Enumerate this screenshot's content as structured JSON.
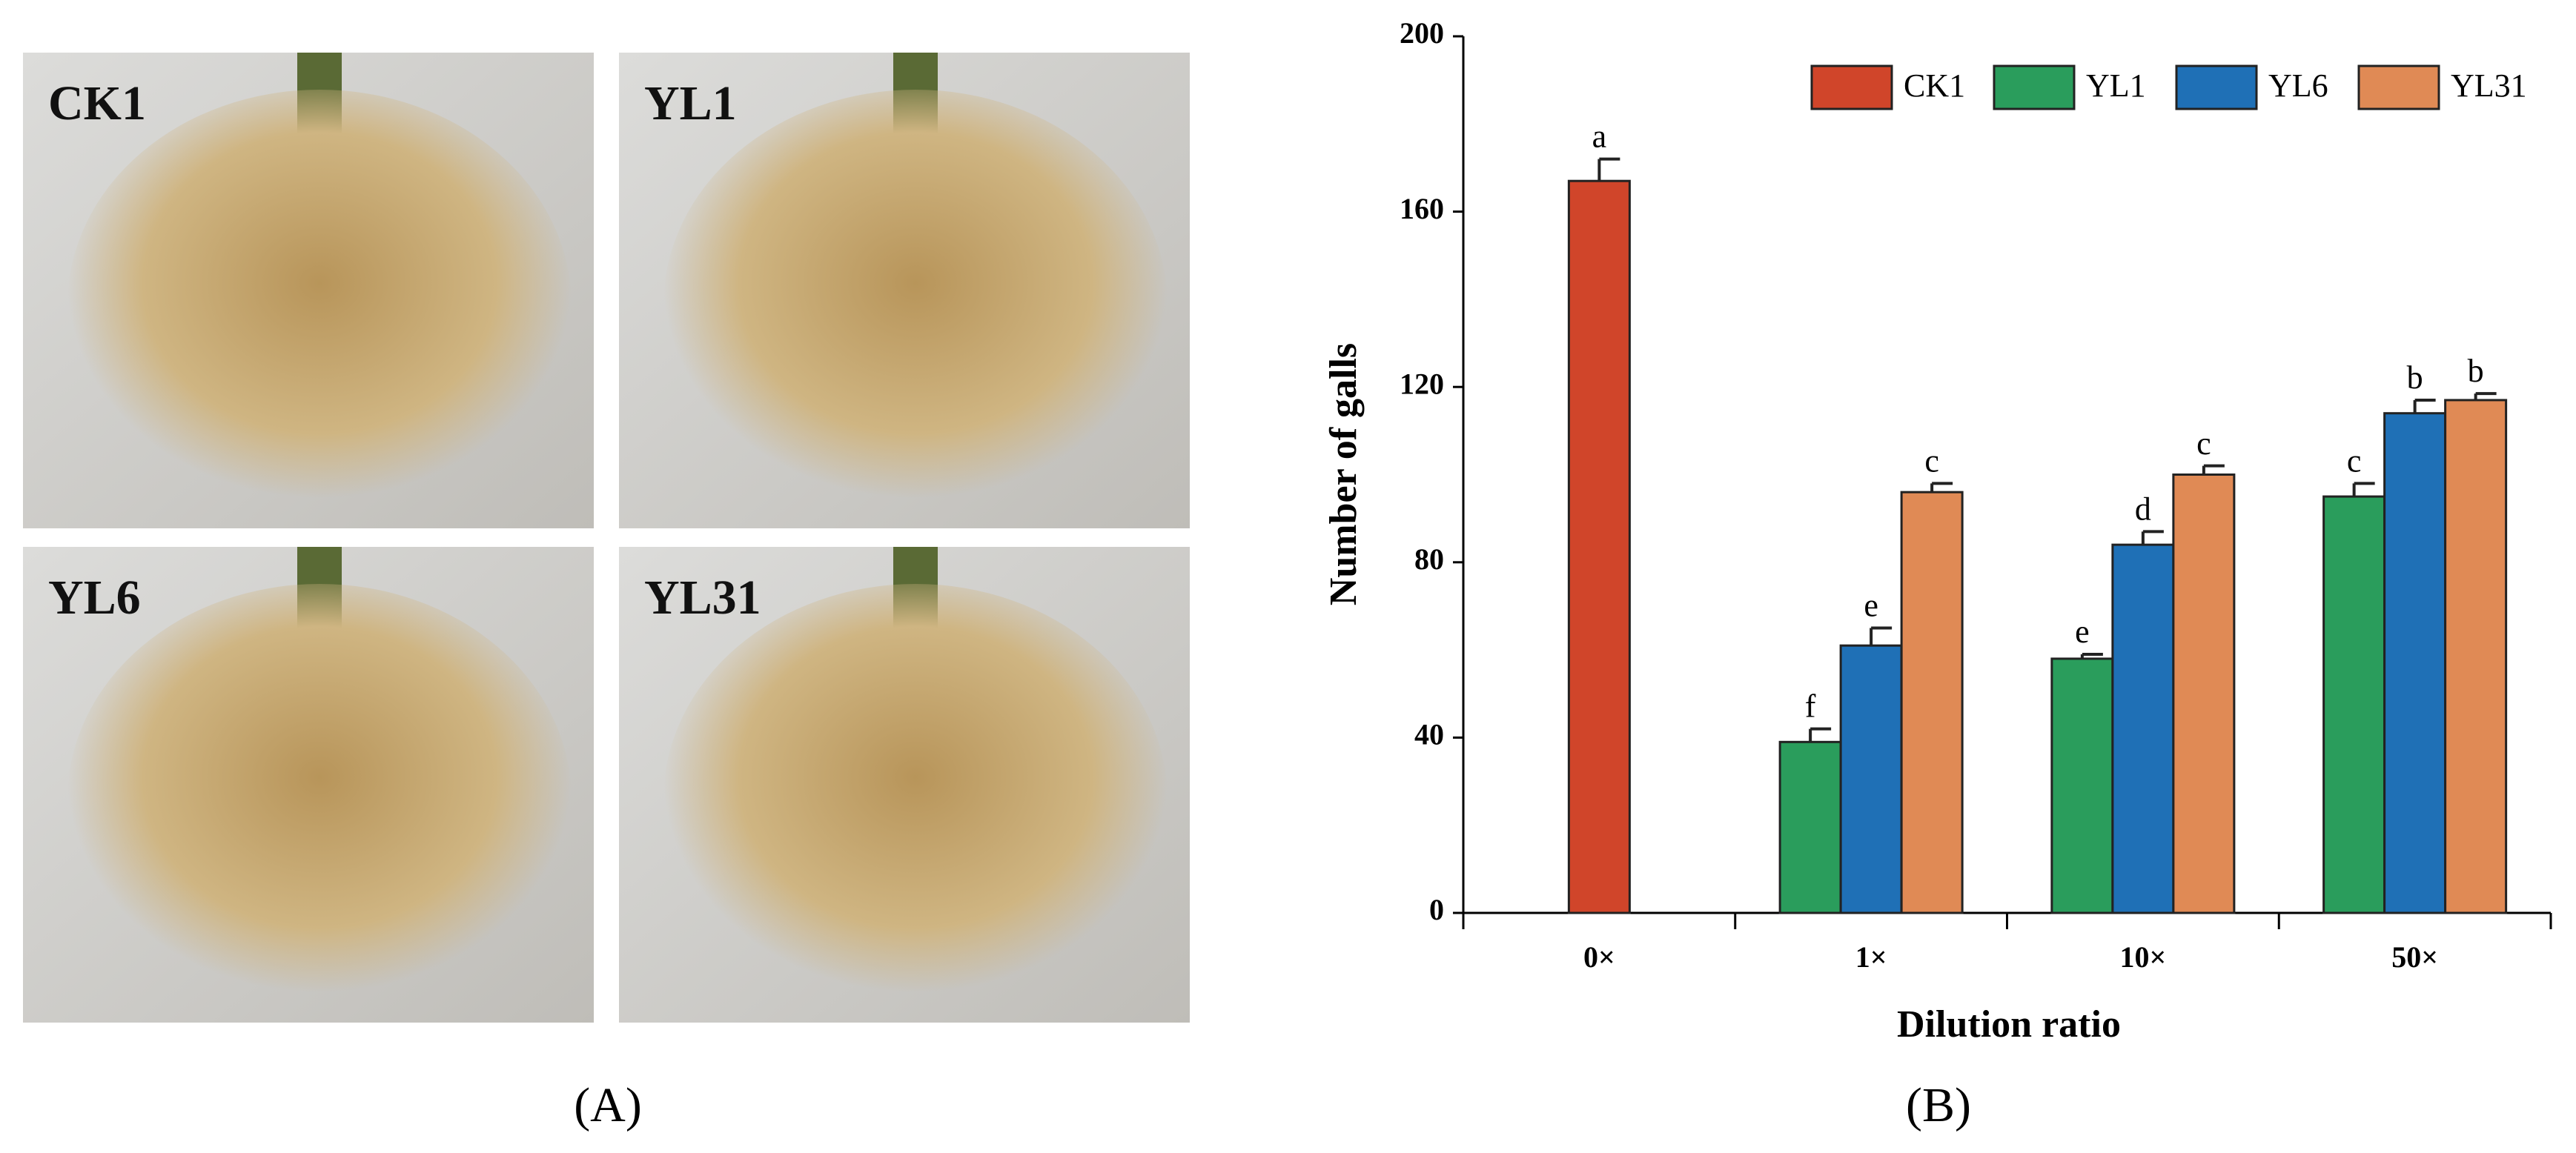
{
  "figure": {
    "panel_a_label": "(A)",
    "photo_labels": [
      "CK1",
      "YL1",
      "YL6",
      "YL31"
    ]
  },
  "chart_data": {
    "type": "bar",
    "panel_label": "(B)",
    "x_label": "Dilution ratio",
    "y_label": "Number of galls",
    "categories": [
      "0×",
      "1×",
      "10×",
      "50×"
    ],
    "series": [
      {
        "name": "CK1",
        "color": "#d0452a",
        "values": [
          167,
          null,
          null,
          null
        ],
        "errors": [
          5,
          null,
          null,
          null
        ],
        "labels": [
          "a",
          null,
          null,
          null
        ]
      },
      {
        "name": "YL1",
        "color": "#2a9d5c",
        "values": [
          null,
          39,
          58,
          95
        ],
        "errors": [
          null,
          3,
          1,
          3
        ],
        "labels": [
          null,
          "f",
          "e",
          "c"
        ]
      },
      {
        "name": "YL6",
        "color": "#1f70b6",
        "values": [
          null,
          61,
          84,
          114
        ],
        "errors": [
          null,
          4,
          3,
          3
        ],
        "labels": [
          null,
          "e",
          "d",
          "b"
        ]
      },
      {
        "name": "YL31",
        "color": "#e08a55",
        "values": [
          null,
          96,
          100,
          117
        ],
        "errors": [
          null,
          2,
          2,
          1.5
        ],
        "labels": [
          null,
          "c",
          "c",
          "b"
        ]
      }
    ],
    "ylim": [
      0,
      200
    ],
    "yticks": [
      0,
      40,
      80,
      120,
      160,
      200
    ],
    "grid": false,
    "legend": "top-right"
  }
}
